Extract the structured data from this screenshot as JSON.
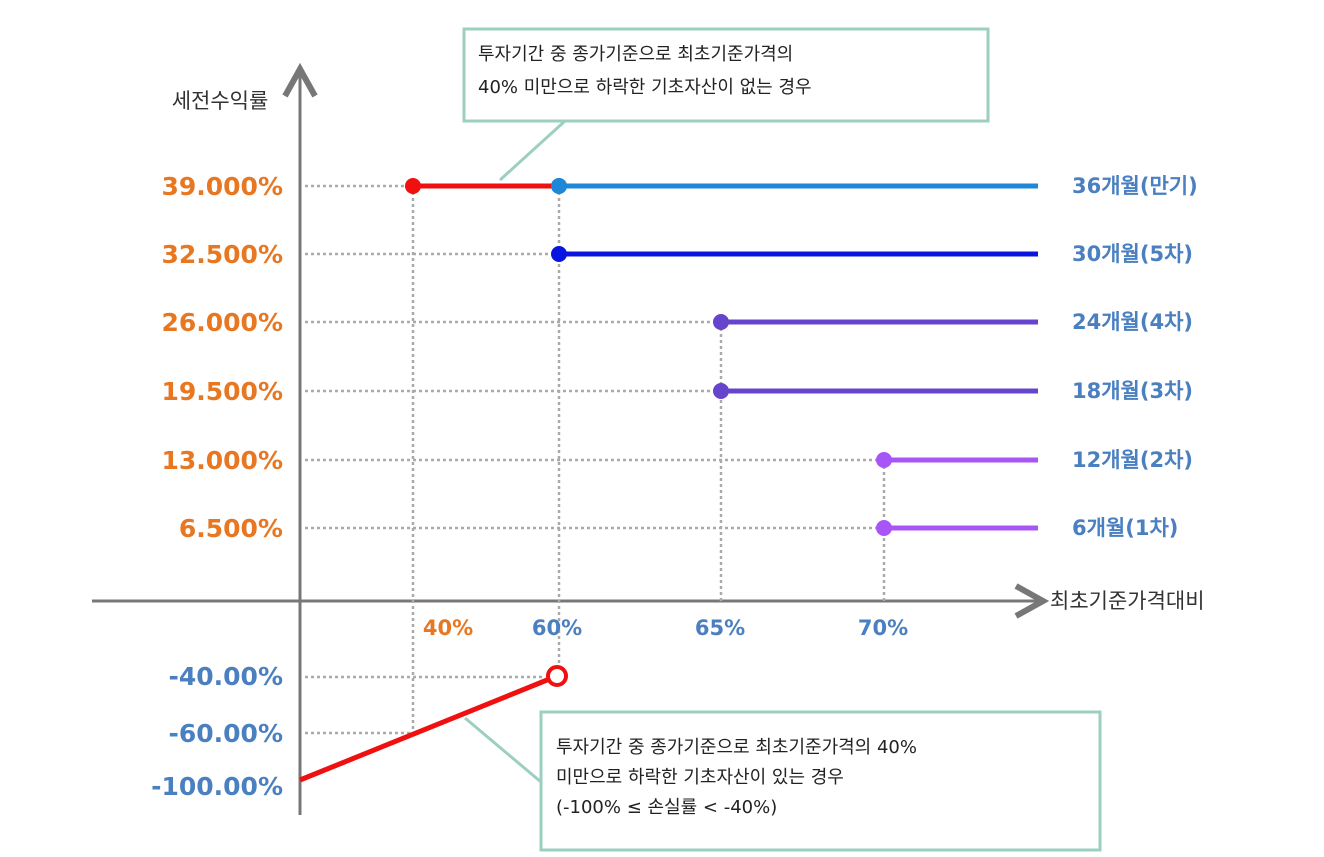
{
  "y_axis_label": "세전수익률",
  "x_axis_label": "최초기준가격대비",
  "return_labels": [
    "39.000%",
    "32.500%",
    "26.000%",
    "19.500%",
    "13.000%",
    "6.500%"
  ],
  "period_labels": [
    "36개월(만기)",
    "30개월(5차)",
    "24개월(4차)",
    "18개월(3차)",
    "12개월(2차)",
    "6개월(1차)"
  ],
  "barrier_labels": [
    "40%",
    "60%",
    "65%",
    "70%"
  ],
  "loss_labels": [
    "-40.00%",
    "-60.00%",
    "-100.00%"
  ],
  "callouts": [
    {
      "lines": [
        "투자기간 중 종가기준으로 최초기준가격의",
        "40% 미만으로 하락한 기초자산이 없는 경우"
      ]
    },
    {
      "lines": [
        "투자기간 중 종가기준으로 최초기준가격의 40%",
        "미만으로 하락한 기초자산이 있는 경우",
        "(-100% ≤ 손실률 < -40%)"
      ]
    }
  ]
}
